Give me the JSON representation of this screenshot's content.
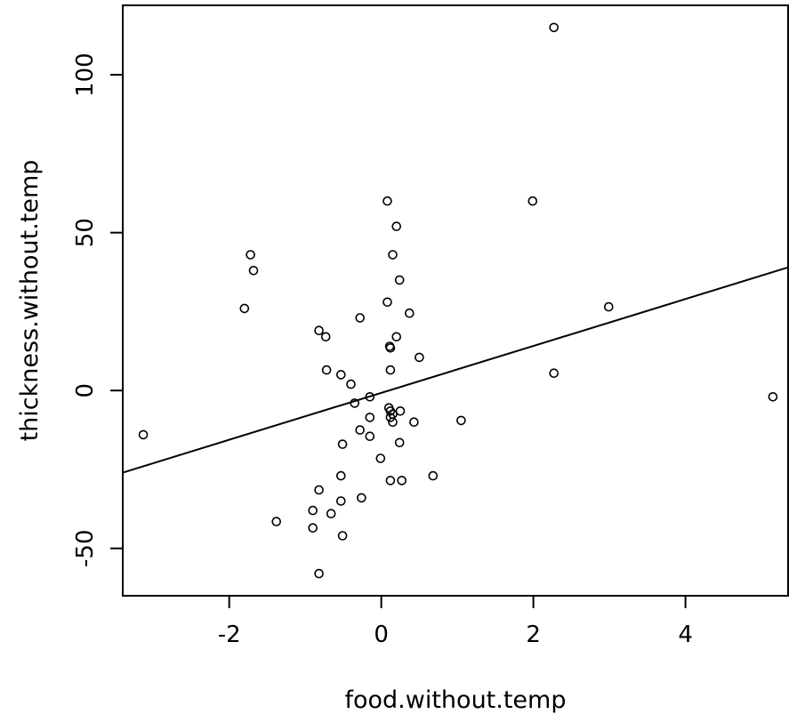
{
  "chart_data": {
    "type": "scatter",
    "xlabel": "food.without.temp",
    "ylabel": "thickness.without.temp",
    "xlim": [
      -3.4,
      5.35
    ],
    "ylim": [
      -65,
      122
    ],
    "x_ticks": [
      -2,
      0,
      2,
      4
    ],
    "x_tick_labels": [
      "-2",
      "0",
      "2",
      "4"
    ],
    "y_ticks": [
      -50,
      0,
      50,
      100
    ],
    "y_tick_labels": [
      "-50",
      "0",
      "50",
      "100"
    ],
    "grid": false,
    "legend": "none",
    "marker": "open-circle",
    "points": [
      [
        2.27,
        115
      ],
      [
        0.08,
        60
      ],
      [
        1.99,
        60
      ],
      [
        0.2,
        52
      ],
      [
        -1.72,
        43
      ],
      [
        0.15,
        43
      ],
      [
        -1.68,
        38
      ],
      [
        0.24,
        35
      ],
      [
        0.08,
        28
      ],
      [
        -1.8,
        26
      ],
      [
        2.99,
        26.5
      ],
      [
        0.37,
        24.5
      ],
      [
        -0.28,
        23
      ],
      [
        -0.82,
        19
      ],
      [
        -0.73,
        17
      ],
      [
        0.2,
        17
      ],
      [
        0.11,
        14
      ],
      [
        0.12,
        13.5
      ],
      [
        0.5,
        10.5
      ],
      [
        -0.72,
        6.5
      ],
      [
        0.12,
        6.5
      ],
      [
        2.27,
        5.5
      ],
      [
        -0.53,
        5
      ],
      [
        -0.4,
        2
      ],
      [
        -0.15,
        -2
      ],
      [
        -0.35,
        -4
      ],
      [
        0.1,
        -5.5
      ],
      [
        0.12,
        -6.5
      ],
      [
        0.25,
        -6.5
      ],
      [
        0.15,
        -7.5
      ],
      [
        0.12,
        -8.5
      ],
      [
        -0.15,
        -8.5
      ],
      [
        0.15,
        -10
      ],
      [
        0.43,
        -10
      ],
      [
        1.05,
        -9.5
      ],
      [
        -0.28,
        -12.5
      ],
      [
        -0.15,
        -14.5
      ],
      [
        -3.13,
        -14
      ],
      [
        -0.51,
        -17
      ],
      [
        0.24,
        -16.5
      ],
      [
        -0.01,
        -21.5
      ],
      [
        -0.53,
        -27
      ],
      [
        0.68,
        -27
      ],
      [
        0.12,
        -28.5
      ],
      [
        0.27,
        -28.5
      ],
      [
        -0.82,
        -31.5
      ],
      [
        -0.26,
        -34
      ],
      [
        -0.53,
        -35
      ],
      [
        -0.9,
        -38
      ],
      [
        -0.66,
        -39
      ],
      [
        -1.38,
        -41.5
      ],
      [
        -0.9,
        -43.5
      ],
      [
        -0.51,
        -46
      ],
      [
        -0.82,
        -58
      ],
      [
        5.15,
        -2
      ]
    ],
    "regression_line": {
      "x": [
        -3.4,
        5.35
      ],
      "y": [
        -26,
        39
      ]
    }
  }
}
